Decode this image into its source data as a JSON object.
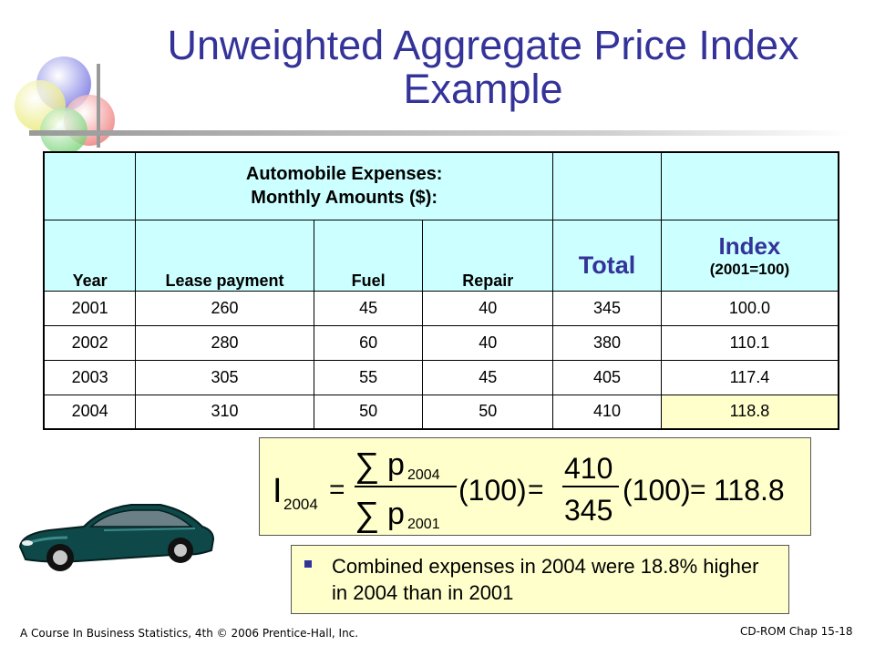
{
  "slide": {
    "title_line1": "Unweighted Aggregate Price Index",
    "title_line2": "Example"
  },
  "table": {
    "group_header_line1": "Automobile Expenses:",
    "group_header_line2": "Monthly Amounts ($):",
    "columns": {
      "year": "Year",
      "lease": "Lease payment",
      "fuel": "Fuel",
      "repair": "Repair",
      "total": "Total",
      "index": "Index",
      "index_base": "(2001=100)"
    },
    "rows": [
      {
        "year": "2001",
        "lease": "260",
        "fuel": "45",
        "repair": "40",
        "total": "345",
        "index": "100.0"
      },
      {
        "year": "2002",
        "lease": "280",
        "fuel": "60",
        "repair": "40",
        "total": "380",
        "index": "110.1"
      },
      {
        "year": "2003",
        "lease": "305",
        "fuel": "55",
        "repair": "45",
        "total": "405",
        "index": "117.4"
      },
      {
        "year": "2004",
        "lease": "310",
        "fuel": "50",
        "repair": "50",
        "total": "410",
        "index": "118.8"
      }
    ],
    "highlight_color": "#ffffcc",
    "header_color": "#ccffff"
  },
  "formula": {
    "lhs_symbol": "I",
    "lhs_sub": "2004",
    "eq": "=",
    "sum": "∑",
    "num_p": "p",
    "num_sub": "2004",
    "den_p": "p",
    "den_sub": "2001",
    "factor": "(100)",
    "num_value": "410",
    "den_value": "345",
    "result": "118.8"
  },
  "bullet": {
    "text": "Combined expenses in 2004 were 18.8% higher in 2004 than in 2001"
  },
  "footer": {
    "left": "A Course In Business Statistics, 4th © 2006 Prentice-Hall, Inc.",
    "right": "CD-ROM Chap 15-18"
  },
  "colors": {
    "title": "#333399",
    "accent": "#333399",
    "box_fill": "#ffffcc"
  },
  "icons": {
    "decoration": "overlapping-circles-icon",
    "car": "car-icon"
  }
}
